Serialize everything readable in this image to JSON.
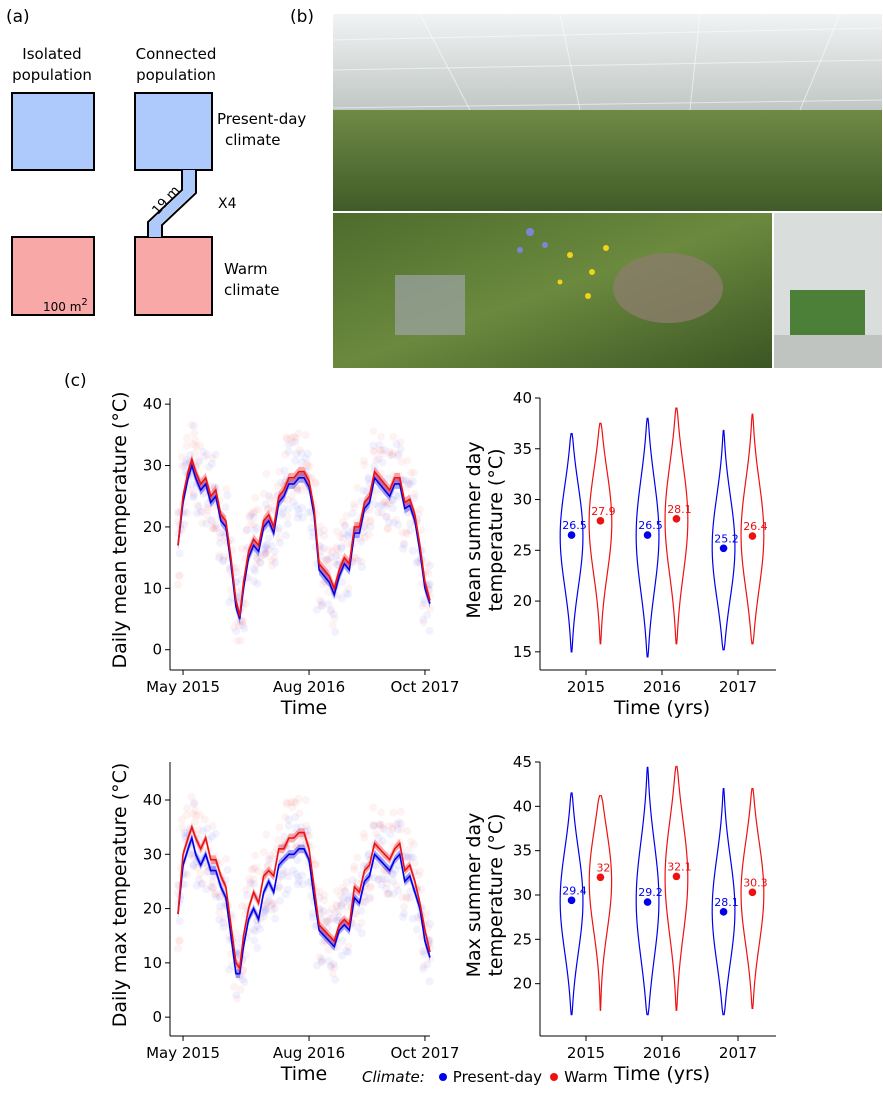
{
  "panel_labels": [
    "(a)",
    "(b)",
    "(c)"
  ],
  "diagram": {
    "isolated_label": [
      "Isolated",
      "population"
    ],
    "connected_label": [
      "Connected",
      "population"
    ],
    "present_label": [
      "Present-day",
      "climate"
    ],
    "warm_label": [
      "Warm",
      "climate"
    ],
    "corridor_label": "19 m",
    "replicate_label": "X4",
    "area_label": "100 m",
    "area_sup": "2",
    "present_color": "#aec9fb",
    "warm_color": "#f9a8a8"
  },
  "photo": {
    "sky_color": "#dfe4e6",
    "grass_color": "#5e7a3a"
  },
  "legend": {
    "title": "Climate:",
    "items": [
      {
        "label": "Present-day",
        "color": "#0000ee"
      },
      {
        "label": "Warm",
        "color": "#ee1111"
      }
    ]
  },
  "chart_data": [
    {
      "type": "line",
      "ylabel": "Daily mean temperature (°C)",
      "xlabel": "Time",
      "xticks": [
        "May 2015",
        "Aug 2016",
        "Oct 2017"
      ],
      "xtick_pos": [
        0.02,
        0.52,
        0.98
      ],
      "ylim": [
        -2,
        41
      ],
      "yticks": [
        0,
        10,
        20,
        30,
        40
      ],
      "x": [
        0,
        0.02,
        0.04,
        0.055,
        0.07,
        0.09,
        0.11,
        0.13,
        0.15,
        0.17,
        0.19,
        0.21,
        0.23,
        0.245,
        0.26,
        0.28,
        0.3,
        0.32,
        0.34,
        0.36,
        0.38,
        0.4,
        0.42,
        0.44,
        0.46,
        0.48,
        0.5,
        0.52,
        0.54,
        0.56,
        0.58,
        0.6,
        0.62,
        0.64,
        0.66,
        0.68,
        0.7,
        0.72,
        0.74,
        0.76,
        0.78,
        0.8,
        0.82,
        0.84,
        0.86,
        0.88,
        0.9,
        0.92,
        0.94,
        0.96,
        0.98,
        1.0
      ],
      "series": [
        {
          "name": "Present-day",
          "color": "#0000ee",
          "values": [
            17,
            24,
            28,
            30,
            28,
            26,
            27,
            24,
            25,
            21,
            20,
            14,
            7,
            5,
            10,
            15,
            17,
            16,
            20,
            21,
            19,
            24,
            25,
            27,
            27,
            28,
            28,
            26.5,
            22,
            13,
            12,
            11,
            9,
            12,
            14,
            13,
            19,
            19,
            23,
            24,
            28,
            27,
            26,
            25,
            27,
            27,
            23,
            23.5,
            21,
            16,
            10,
            7.5
          ]
        },
        {
          "name": "Warm",
          "color": "#ee1111",
          "values": [
            17,
            25,
            29,
            31,
            29,
            27,
            28,
            25,
            26,
            22,
            21,
            15,
            8,
            5.5,
            11,
            16,
            18,
            17,
            21,
            22,
            20,
            25,
            26,
            28,
            28,
            29,
            29,
            27.5,
            23,
            14,
            13,
            12,
            10,
            13,
            15,
            14,
            20,
            20,
            24,
            25,
            29,
            28,
            27,
            26,
            28,
            28,
            24,
            24.5,
            22,
            17,
            11,
            8
          ]
        }
      ]
    },
    {
      "type": "violin",
      "ylabel": [
        "Mean summer day",
        "temperature (°C)"
      ],
      "xlabel": "Time (yrs)",
      "categories": [
        "2015",
        "2016",
        "2017"
      ],
      "ylim": [
        14,
        40
      ],
      "yticks": [
        15,
        20,
        25,
        30,
        35,
        40
      ],
      "groups": [
        {
          "year": "2015",
          "series": "Present-day",
          "color": "#0000ee",
          "min": 15,
          "max": 36.5,
          "mean": 26.5,
          "label": "26.5"
        },
        {
          "year": "2015",
          "series": "Warm",
          "color": "#ee1111",
          "min": 15.8,
          "max": 37.5,
          "mean": 27.9,
          "label": "27.9"
        },
        {
          "year": "2016",
          "series": "Present-day",
          "color": "#0000ee",
          "min": 14.5,
          "max": 38,
          "mean": 26.5,
          "label": "26.5"
        },
        {
          "year": "2016",
          "series": "Warm",
          "color": "#ee1111",
          "min": 15.8,
          "max": 39,
          "mean": 28.1,
          "label": "28.1"
        },
        {
          "year": "2017",
          "series": "Present-day",
          "color": "#0000ee",
          "min": 15.2,
          "max": 36.8,
          "mean": 25.2,
          "label": "25.2"
        },
        {
          "year": "2017",
          "series": "Warm",
          "color": "#ee1111",
          "min": 15.8,
          "max": 38.4,
          "mean": 26.4,
          "label": "26.4"
        }
      ]
    },
    {
      "type": "line",
      "ylabel": "Daily max temperature (°C)",
      "xlabel": "Time",
      "xticks": [
        "May 2015",
        "Aug 2016",
        "Oct 2017"
      ],
      "xtick_pos": [
        0.02,
        0.52,
        0.98
      ],
      "ylim": [
        -2,
        47
      ],
      "yticks": [
        0,
        10,
        20,
        30,
        40
      ],
      "x": [
        0,
        0.02,
        0.04,
        0.055,
        0.07,
        0.09,
        0.11,
        0.13,
        0.15,
        0.17,
        0.19,
        0.21,
        0.23,
        0.245,
        0.26,
        0.28,
        0.3,
        0.32,
        0.34,
        0.36,
        0.38,
        0.4,
        0.42,
        0.44,
        0.46,
        0.48,
        0.5,
        0.52,
        0.54,
        0.56,
        0.58,
        0.6,
        0.62,
        0.64,
        0.66,
        0.68,
        0.7,
        0.72,
        0.74,
        0.76,
        0.78,
        0.8,
        0.82,
        0.84,
        0.86,
        0.88,
        0.9,
        0.92,
        0.94,
        0.96,
        0.98,
        1.0
      ],
      "series": [
        {
          "name": "Present-day",
          "color": "#0000ee",
          "values": [
            19,
            28,
            31,
            33,
            30,
            28,
            30,
            27,
            27,
            24,
            22,
            15,
            8,
            8,
            13,
            18,
            20,
            18,
            23,
            25,
            23,
            28,
            29,
            30,
            30,
            31,
            31,
            29,
            22,
            16,
            15,
            14,
            13,
            16,
            17,
            16,
            22,
            21,
            25,
            26,
            30,
            29,
            28,
            27,
            29,
            30,
            25,
            26,
            23,
            20,
            14,
            11
          ]
        },
        {
          "name": "Warm",
          "color": "#ee1111",
          "values": [
            19,
            30,
            33,
            35,
            33,
            31,
            33,
            29,
            29,
            26,
            24,
            17,
            10,
            9,
            15,
            20,
            23,
            21,
            26,
            27,
            26,
            31,
            31,
            33,
            33,
            34,
            34,
            31,
            24,
            17,
            16,
            15,
            14,
            17,
            18,
            17,
            24,
            23,
            27,
            28,
            32,
            31,
            30,
            29,
            31,
            32,
            27,
            28,
            25,
            21,
            16,
            12
          ]
        }
      ]
    },
    {
      "type": "violin",
      "ylabel": [
        "Max summer day",
        "temperature (°C)"
      ],
      "xlabel": "Time (yrs)",
      "categories": [
        "2015",
        "2016",
        "2017"
      ],
      "ylim": [
        15,
        45
      ],
      "yticks": [
        20,
        25,
        30,
        35,
        40,
        45
      ],
      "groups": [
        {
          "year": "2015",
          "series": "Present-day",
          "color": "#0000ee",
          "min": 16.5,
          "max": 41.5,
          "mean": 29.4,
          "label": "29.4"
        },
        {
          "year": "2015",
          "series": "Warm",
          "color": "#ee1111",
          "min": 17,
          "max": 41.2,
          "mean": 32,
          "label": "32"
        },
        {
          "year": "2016",
          "series": "Present-day",
          "color": "#0000ee",
          "min": 16.5,
          "max": 44.4,
          "mean": 29.2,
          "label": "29.2"
        },
        {
          "year": "2016",
          "series": "Warm",
          "color": "#ee1111",
          "min": 17,
          "max": 44.5,
          "mean": 32.1,
          "label": "32.1"
        },
        {
          "year": "2017",
          "series": "Present-day",
          "color": "#0000ee",
          "min": 16.5,
          "max": 42,
          "mean": 28.1,
          "label": "28.1"
        },
        {
          "year": "2017",
          "series": "Warm",
          "color": "#ee1111",
          "min": 17.2,
          "max": 42,
          "mean": 30.3,
          "label": "30.3"
        }
      ]
    }
  ]
}
